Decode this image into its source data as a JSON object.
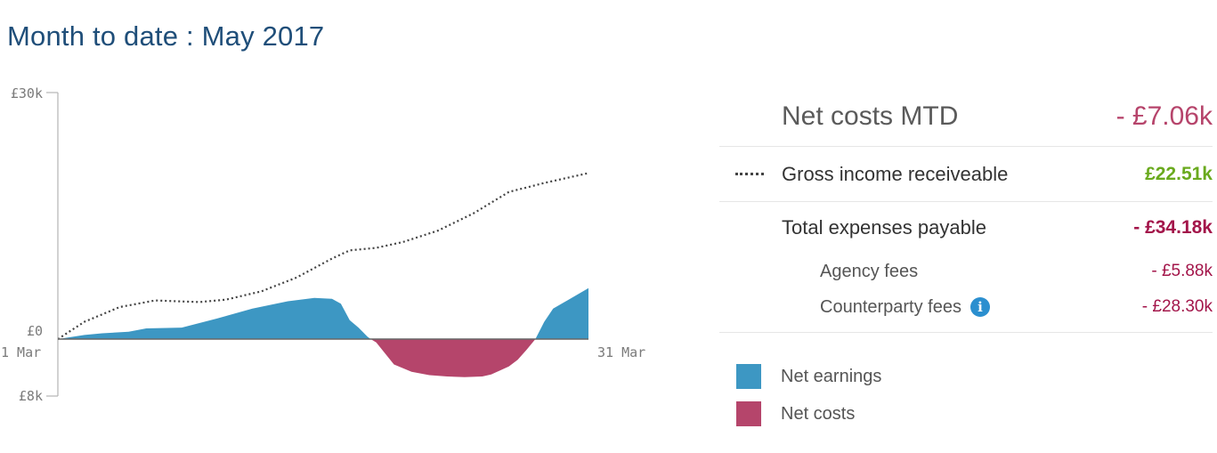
{
  "title": "Month to date : May 2017",
  "chart_data": {
    "type": "area",
    "y_ticks": [
      "£30k",
      "£0",
      "£8k"
    ],
    "x_ticks": [
      "1 Mar",
      "31 Mar"
    ],
    "ylim": [
      -8,
      30
    ],
    "x_range": [
      1,
      31
    ],
    "series": [
      {
        "name": "Gross income receiveable",
        "style": "dotted-line",
        "color": "#444444",
        "x": [
          1,
          2.5,
          4.5,
          6.5,
          9,
          10.5,
          12.5,
          14.5,
          16.5,
          17.5,
          19,
          20.5,
          22.5,
          24.5,
          26.5,
          28.5,
          31
        ],
        "y": [
          0,
          2.1,
          3.9,
          4.7,
          4.5,
          4.8,
          5.8,
          7.5,
          9.8,
          10.8,
          11.1,
          11.8,
          13.2,
          15.3,
          17.9,
          19,
          20.2
        ]
      },
      {
        "name": "Net earnings / Net costs",
        "style": "area",
        "positive_color": "#3d97c3",
        "negative_color": "#b5456b",
        "x": [
          1,
          2.5,
          3.5,
          5,
          6,
          8,
          10,
          12,
          14,
          15.5,
          16.5,
          17,
          17.5,
          18,
          18.5,
          19,
          20,
          21,
          22,
          23,
          24,
          25,
          25.5,
          26,
          26.5,
          27,
          27.5,
          28,
          28.5,
          29,
          31
        ],
        "y": [
          0,
          0.5,
          0.7,
          0.9,
          1.3,
          1.4,
          2.5,
          3.7,
          4.6,
          5,
          4.9,
          4.3,
          2.3,
          1.4,
          0.3,
          -0.5,
          -3.8,
          -4.9,
          -5.4,
          -5.6,
          -5.7,
          -5.6,
          -5.3,
          -4.7,
          -4.1,
          -3.1,
          -1.6,
          0,
          2.1,
          3.7,
          6.2
        ]
      }
    ]
  },
  "summary": {
    "net_label": "Net costs MTD",
    "net_value": "- £7.06k",
    "gross_label": "Gross income receiveable",
    "gross_value": "£22.51k",
    "expenses_label": "Total expenses payable",
    "expenses_value": "- £34.18k",
    "agency_label": "Agency fees",
    "agency_value": "- £5.88k",
    "counterparty_label": "Counterparty fees",
    "counterparty_value": "- £28.30k",
    "info_glyph": "i"
  },
  "legend": [
    {
      "label": "Net earnings",
      "color": "#3d97c3"
    },
    {
      "label": "Net costs",
      "color": "#b5456b"
    }
  ],
  "colors": {
    "title": "#1f4e79",
    "net_value": "#b6446b",
    "gross_value": "#6aaa1e",
    "expense_value": "#a3154a"
  }
}
